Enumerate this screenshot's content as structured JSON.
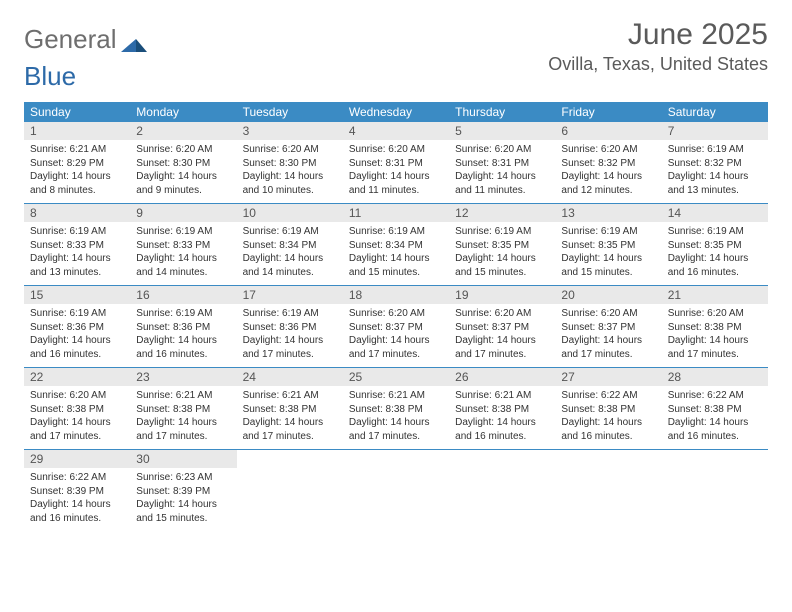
{
  "logo": {
    "word1": "General",
    "word2": "Blue"
  },
  "title": "June 2025",
  "location": "Ovilla, Texas, United States",
  "colors": {
    "header_bg": "#3b8bc4",
    "header_text": "#ffffff",
    "daynum_bg": "#e9e9e9",
    "daynum_text": "#555555",
    "body_text": "#333333",
    "rule": "#3b8bc4",
    "logo_gray": "#6e6e6e",
    "logo_blue": "#2d6aa8"
  },
  "dow": [
    "Sunday",
    "Monday",
    "Tuesday",
    "Wednesday",
    "Thursday",
    "Friday",
    "Saturday"
  ],
  "days": [
    {
      "n": "1",
      "sunrise": "6:21 AM",
      "sunset": "8:29 PM",
      "daylight": "14 hours and 8 minutes."
    },
    {
      "n": "2",
      "sunrise": "6:20 AM",
      "sunset": "8:30 PM",
      "daylight": "14 hours and 9 minutes."
    },
    {
      "n": "3",
      "sunrise": "6:20 AM",
      "sunset": "8:30 PM",
      "daylight": "14 hours and 10 minutes."
    },
    {
      "n": "4",
      "sunrise": "6:20 AM",
      "sunset": "8:31 PM",
      "daylight": "14 hours and 11 minutes."
    },
    {
      "n": "5",
      "sunrise": "6:20 AM",
      "sunset": "8:31 PM",
      "daylight": "14 hours and 11 minutes."
    },
    {
      "n": "6",
      "sunrise": "6:20 AM",
      "sunset": "8:32 PM",
      "daylight": "14 hours and 12 minutes."
    },
    {
      "n": "7",
      "sunrise": "6:19 AM",
      "sunset": "8:32 PM",
      "daylight": "14 hours and 13 minutes."
    },
    {
      "n": "8",
      "sunrise": "6:19 AM",
      "sunset": "8:33 PM",
      "daylight": "14 hours and 13 minutes."
    },
    {
      "n": "9",
      "sunrise": "6:19 AM",
      "sunset": "8:33 PM",
      "daylight": "14 hours and 14 minutes."
    },
    {
      "n": "10",
      "sunrise": "6:19 AM",
      "sunset": "8:34 PM",
      "daylight": "14 hours and 14 minutes."
    },
    {
      "n": "11",
      "sunrise": "6:19 AM",
      "sunset": "8:34 PM",
      "daylight": "14 hours and 15 minutes."
    },
    {
      "n": "12",
      "sunrise": "6:19 AM",
      "sunset": "8:35 PM",
      "daylight": "14 hours and 15 minutes."
    },
    {
      "n": "13",
      "sunrise": "6:19 AM",
      "sunset": "8:35 PM",
      "daylight": "14 hours and 15 minutes."
    },
    {
      "n": "14",
      "sunrise": "6:19 AM",
      "sunset": "8:35 PM",
      "daylight": "14 hours and 16 minutes."
    },
    {
      "n": "15",
      "sunrise": "6:19 AM",
      "sunset": "8:36 PM",
      "daylight": "14 hours and 16 minutes."
    },
    {
      "n": "16",
      "sunrise": "6:19 AM",
      "sunset": "8:36 PM",
      "daylight": "14 hours and 16 minutes."
    },
    {
      "n": "17",
      "sunrise": "6:19 AM",
      "sunset": "8:36 PM",
      "daylight": "14 hours and 17 minutes."
    },
    {
      "n": "18",
      "sunrise": "6:20 AM",
      "sunset": "8:37 PM",
      "daylight": "14 hours and 17 minutes."
    },
    {
      "n": "19",
      "sunrise": "6:20 AM",
      "sunset": "8:37 PM",
      "daylight": "14 hours and 17 minutes."
    },
    {
      "n": "20",
      "sunrise": "6:20 AM",
      "sunset": "8:37 PM",
      "daylight": "14 hours and 17 minutes."
    },
    {
      "n": "21",
      "sunrise": "6:20 AM",
      "sunset": "8:38 PM",
      "daylight": "14 hours and 17 minutes."
    },
    {
      "n": "22",
      "sunrise": "6:20 AM",
      "sunset": "8:38 PM",
      "daylight": "14 hours and 17 minutes."
    },
    {
      "n": "23",
      "sunrise": "6:21 AM",
      "sunset": "8:38 PM",
      "daylight": "14 hours and 17 minutes."
    },
    {
      "n": "24",
      "sunrise": "6:21 AM",
      "sunset": "8:38 PM",
      "daylight": "14 hours and 17 minutes."
    },
    {
      "n": "25",
      "sunrise": "6:21 AM",
      "sunset": "8:38 PM",
      "daylight": "14 hours and 17 minutes."
    },
    {
      "n": "26",
      "sunrise": "6:21 AM",
      "sunset": "8:38 PM",
      "daylight": "14 hours and 16 minutes."
    },
    {
      "n": "27",
      "sunrise": "6:22 AM",
      "sunset": "8:38 PM",
      "daylight": "14 hours and 16 minutes."
    },
    {
      "n": "28",
      "sunrise": "6:22 AM",
      "sunset": "8:38 PM",
      "daylight": "14 hours and 16 minutes."
    },
    {
      "n": "29",
      "sunrise": "6:22 AM",
      "sunset": "8:39 PM",
      "daylight": "14 hours and 16 minutes."
    },
    {
      "n": "30",
      "sunrise": "6:23 AM",
      "sunset": "8:39 PM",
      "daylight": "14 hours and 15 minutes."
    }
  ],
  "labels": {
    "sunrise": "Sunrise: ",
    "sunset": "Sunset: ",
    "daylight": "Daylight: "
  }
}
